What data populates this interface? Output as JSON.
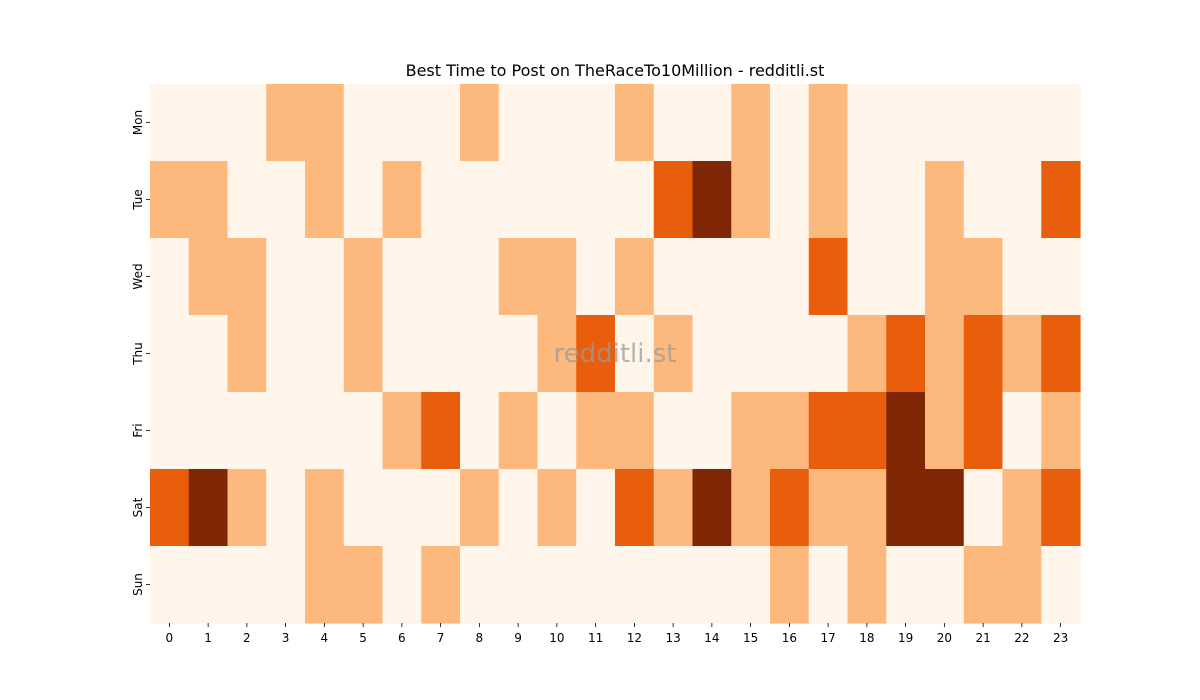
{
  "chart_data": {
    "type": "heatmap",
    "title": "Best Time to Post on TheRaceTo10Million - redditli.st",
    "watermark": "redditli.st",
    "xlabel": "",
    "ylabel": "",
    "x": [
      "0",
      "1",
      "2",
      "3",
      "4",
      "5",
      "6",
      "7",
      "8",
      "9",
      "10",
      "11",
      "12",
      "13",
      "14",
      "15",
      "16",
      "17",
      "18",
      "19",
      "20",
      "21",
      "22",
      "23"
    ],
    "y": [
      "Mon",
      "Tue",
      "Wed",
      "Thu",
      "Fri",
      "Sat",
      "Sun"
    ],
    "values": [
      [
        0,
        0,
        0,
        1,
        1,
        0,
        0,
        0,
        1,
        0,
        0,
        0,
        1,
        0,
        0,
        1,
        0,
        1,
        0,
        0,
        0,
        0,
        0,
        0
      ],
      [
        1,
        1,
        0,
        0,
        1,
        0,
        1,
        0,
        0,
        0,
        0,
        0,
        0,
        2,
        3,
        1,
        0,
        1,
        0,
        0,
        1,
        0,
        0,
        2
      ],
      [
        0,
        1,
        1,
        0,
        0,
        1,
        0,
        0,
        0,
        1,
        1,
        0,
        1,
        0,
        0,
        0,
        0,
        2,
        0,
        0,
        1,
        1,
        0,
        0
      ],
      [
        0,
        0,
        1,
        0,
        0,
        1,
        0,
        0,
        0,
        0,
        1,
        2,
        0,
        1,
        0,
        0,
        0,
        0,
        1,
        2,
        1,
        2,
        1,
        2
      ],
      [
        0,
        0,
        0,
        0,
        0,
        0,
        1,
        2,
        0,
        1,
        0,
        1,
        1,
        0,
        0,
        1,
        1,
        2,
        2,
        3,
        1,
        2,
        0,
        1
      ],
      [
        2,
        3,
        1,
        0,
        1,
        0,
        0,
        0,
        1,
        0,
        1,
        0,
        2,
        1,
        3,
        1,
        2,
        1,
        1,
        3,
        3,
        0,
        1,
        2
      ],
      [
        0,
        0,
        0,
        0,
        1,
        1,
        0,
        1,
        0,
        0,
        0,
        0,
        0,
        0,
        0,
        0,
        1,
        0,
        1,
        0,
        0,
        1,
        1,
        0
      ]
    ],
    "value_range": [
      0,
      3
    ],
    "colormap": {
      "name": "Oranges",
      "levels": [
        "#fff5eb",
        "#fdb97d",
        "#e95e0d",
        "#7f2704"
      ]
    },
    "colorbar": false,
    "grid": false
  }
}
